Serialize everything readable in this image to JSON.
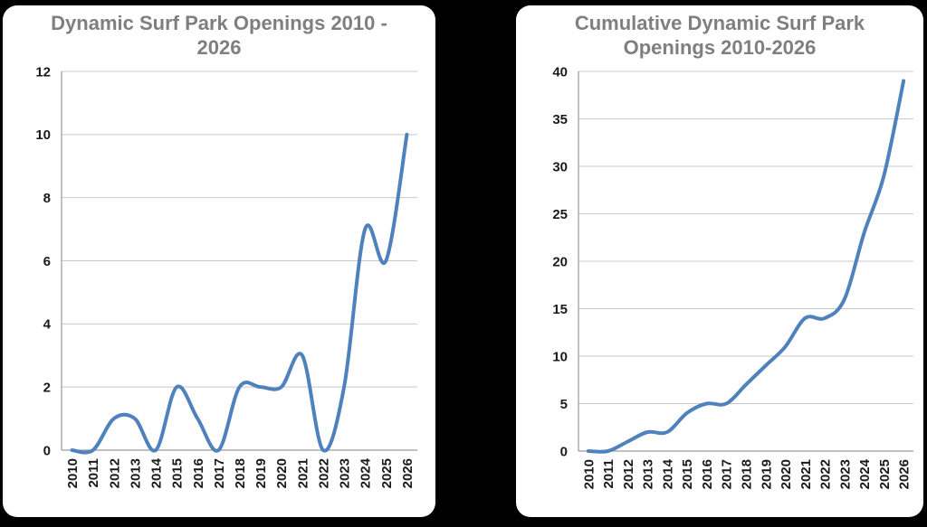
{
  "page": {
    "background": "#000000",
    "card_background": "#ffffff",
    "title_color": "#7f7f7f",
    "axis_label_color": "#1a1a1a",
    "gridline_color": "#c8c8c8",
    "axis_line_color": "#9a9a9a"
  },
  "chart_data": [
    {
      "type": "line",
      "title": "Dynamic Surf Park Openings 2010 - 2026",
      "title_lines": [
        "Dynamic Surf Park Openings 2010 -",
        "2026"
      ],
      "categories": [
        "2010",
        "2011",
        "2012",
        "2013",
        "2014",
        "2015",
        "2016",
        "2017",
        "2018",
        "2019",
        "2020",
        "2021",
        "2022",
        "2023",
        "2024",
        "2025",
        "2026"
      ],
      "values": [
        0,
        0,
        1,
        1,
        0,
        2,
        1,
        0,
        2,
        2,
        2,
        3,
        0,
        2,
        7,
        6,
        10
      ],
      "ylim": [
        0,
        12
      ],
      "yticks": [
        0,
        2,
        4,
        6,
        8,
        10,
        12
      ],
      "xlabel": "",
      "ylabel": "",
      "grid": true,
      "smooth": true,
      "legend": "none",
      "line_color": "#4f81bd"
    },
    {
      "type": "line",
      "title": "Cumulative Dynamic Surf Park Openings 2010-2026",
      "title_lines": [
        "Cumulative Dynamic Surf Park",
        "Openings 2010-2026"
      ],
      "categories": [
        "2010",
        "2011",
        "2012",
        "2013",
        "2014",
        "2015",
        "2016",
        "2017",
        "2018",
        "2019",
        "2020",
        "2021",
        "2022",
        "2023",
        "2024",
        "2025",
        "2026"
      ],
      "values": [
        0,
        0,
        1,
        2,
        2,
        4,
        5,
        5,
        7,
        9,
        11,
        14,
        14,
        16,
        23,
        29,
        39
      ],
      "ylim": [
        0,
        40
      ],
      "yticks": [
        0,
        5,
        10,
        15,
        20,
        25,
        30,
        35,
        40
      ],
      "xlabel": "",
      "ylabel": "",
      "grid": true,
      "smooth": true,
      "legend": "none",
      "line_color": "#4f81bd"
    }
  ]
}
